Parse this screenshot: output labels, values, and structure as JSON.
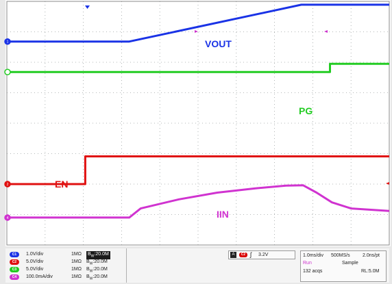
{
  "chart_data": {
    "type": "line",
    "title": "",
    "xlabel": "",
    "ylabel": "",
    "x_range": [
      0,
      10
    ],
    "y_range": [
      0,
      8
    ],
    "grid": true,
    "series": [
      {
        "name": "VOUT",
        "color": "#1a33e6",
        "x": [
          0,
          3.2,
          7.7,
          10
        ],
        "y": [
          6.68,
          6.68,
          7.89,
          7.89
        ]
      },
      {
        "name": "PG",
        "color": "#22cc22",
        "x": [
          0,
          8.45,
          8.45,
          10
        ],
        "y": [
          5.68,
          5.68,
          5.95,
          5.95
        ]
      },
      {
        "name": "EN",
        "color": "#e01010",
        "x": [
          0,
          2.05,
          2.05,
          10
        ],
        "y": [
          2.0,
          2.0,
          2.91,
          2.91
        ]
      },
      {
        "name": "IIN",
        "color": "#d033d0",
        "x": [
          0,
          3.2,
          3.5,
          4.5,
          5.5,
          6.5,
          7.3,
          7.75,
          8.1,
          8.5,
          9,
          10
        ],
        "y": [
          0.9,
          0.9,
          1.2,
          1.5,
          1.72,
          1.86,
          1.95,
          1.96,
          1.72,
          1.4,
          1.2,
          1.12
        ]
      }
    ],
    "annotations": [
      "VOUT",
      "PG",
      "EN",
      "IIN"
    ]
  },
  "trace_labels": {
    "vout": "VOUT",
    "pg": "PG",
    "en": "EN",
    "iin": "IIN"
  },
  "channel_markers": [
    "1",
    "",
    "2",
    "4"
  ],
  "channels": [
    {
      "tag": "C1",
      "scale": "1.0V/div",
      "impedance": "1MΩ",
      "bw_sym": "B",
      "bw_sub": "W",
      "bw": ":20.0M",
      "color": "#1a33e6"
    },
    {
      "tag": "C2",
      "scale": "5.0V/div",
      "impedance": "1MΩ",
      "bw_sym": "B",
      "bw_sub": "W",
      "bw": ":20.0M",
      "color": "#e01010"
    },
    {
      "tag": "C3",
      "scale": "5.0V/div",
      "impedance": "1MΩ",
      "bw_sym": "B",
      "bw_sub": "W",
      "bw": ":20.0M",
      "color": "#22cc22"
    },
    {
      "tag": "C4",
      "scale": "100.0mA/div",
      "impedance": "1MΩ",
      "bw_sym": "B",
      "bw_sub": "W",
      "bw": ":20.0M",
      "color": "#d033d0"
    }
  ],
  "trigger": {
    "mode": "A",
    "source": "C2",
    "slope": "ʃ",
    "level": "3.2V"
  },
  "acquisition": {
    "timebase": "1.0ms/div",
    "rate": "500MS/s",
    "resolution": "2.0ns/pt",
    "state": "Run",
    "mode": "Sample",
    "count": "132 acqs",
    "record_length": "RL:5.0M",
    "state_color": "#cc33cc"
  }
}
